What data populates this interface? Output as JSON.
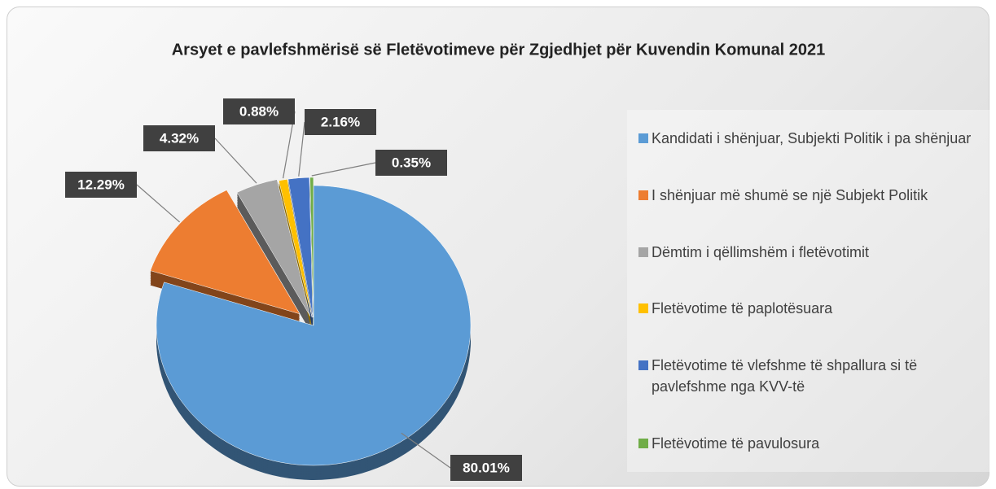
{
  "chart_data": {
    "type": "pie",
    "title": "Arsyet e pavlefshmërisë së Fletëvotimeve për Zgjedhjet për Kuvendin Komunal 2021",
    "categories": [
      "Kandidati i shënjuar, Subjekti Politik i pa shënjuar",
      "I shënjuar më shumë se një Subjekt Politik",
      "Dëmtim i qëllimshëm i fletëvotimit",
      "Fletëvotime të paplotësuara",
      "Fletëvotime të vlefshme të shpallura si të pavlefshme nga KVV-të",
      "Fletëvotime të pavulosura"
    ],
    "values": [
      80.01,
      12.29,
      4.32,
      0.88,
      2.16,
      0.35
    ],
    "value_labels": [
      "80.01%",
      "12.29%",
      "4.32%",
      "0.88%",
      "2.16%",
      "0.35%"
    ],
    "colors": [
      "#5b9bd5",
      "#ed7d31",
      "#a5a5a5",
      "#ffc000",
      "#4472c4",
      "#70ad47"
    ],
    "legend": "right"
  }
}
